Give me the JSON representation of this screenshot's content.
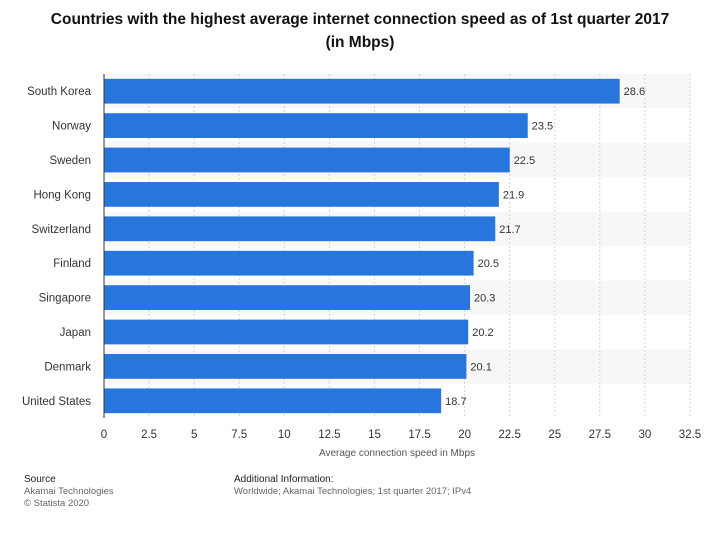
{
  "chart_data": {
    "type": "bar",
    "orientation": "horizontal",
    "title_line1": "Countries with the highest average internet connection speed as of 1st quarter 2017",
    "title_line2": "(in Mbps)",
    "categories": [
      "South Korea",
      "Norway",
      "Sweden",
      "Hong Kong",
      "Switzerland",
      "Finland",
      "Singapore",
      "Japan",
      "Denmark",
      "United States"
    ],
    "values": [
      28.6,
      23.5,
      22.5,
      21.9,
      21.7,
      20.5,
      20.3,
      20.2,
      20.1,
      18.7
    ],
    "value_labels": [
      "28.6",
      "23.5",
      "22.5",
      "21.9",
      "21.7",
      "20.5",
      "20.3",
      "20.2",
      "20.1",
      "18.7"
    ],
    "xlabel": "Average connection speed in Mbps",
    "ylabel": "",
    "xlim": [
      0,
      32.5
    ],
    "xticks": [
      0,
      2.5,
      5,
      7.5,
      10,
      12.5,
      15,
      17.5,
      20,
      22.5,
      25,
      27.5,
      30,
      32.5
    ],
    "xtick_labels": [
      "0",
      "2.5",
      "5",
      "7.5",
      "10",
      "12.5",
      "15",
      "17.5",
      "20",
      "22.5",
      "25",
      "27.5",
      "30",
      "32.5"
    ],
    "grid": true,
    "bar_color": "#2876dd",
    "band_color": "#f7f7f7",
    "grid_color": "#d4d4d4"
  },
  "footer": {
    "source_heading": "Source",
    "source_line1": "Akamai Technologies",
    "source_line2": "© Statista 2020",
    "info_heading": "Additional Information:",
    "info_text": "Worldwide; Akamai Technologies; 1st quarter 2017; IPv4"
  }
}
